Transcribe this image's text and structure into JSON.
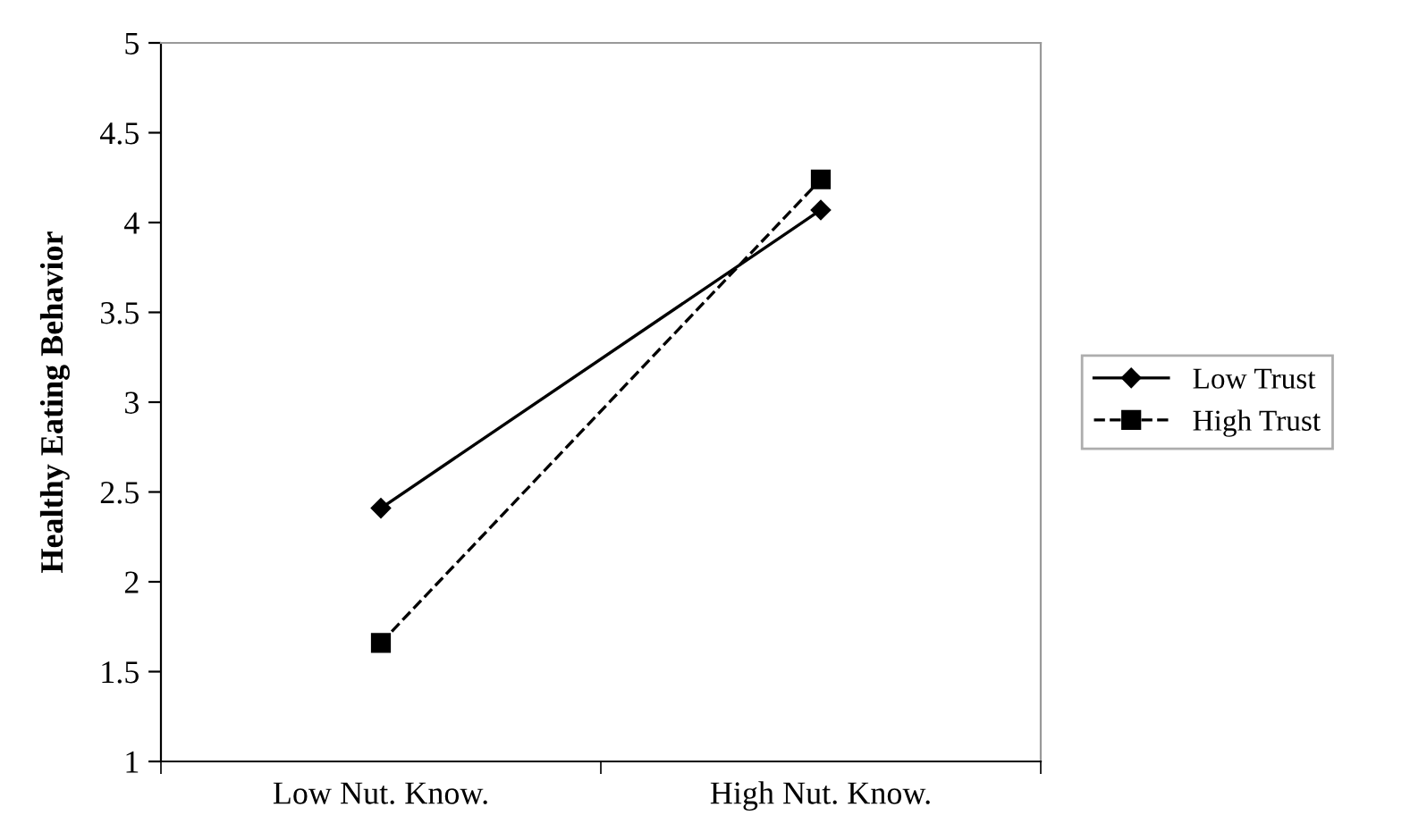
{
  "chart_data": {
    "type": "line",
    "ylabel": "Healthy Eating Behavior",
    "categories": [
      "Low Nut. Know.",
      "High Nut. Know."
    ],
    "series": [
      {
        "name": "Low Trust",
        "color": "#000000",
        "values": [
          2.41,
          4.07
        ],
        "marker": "diamond",
        "line_style": "solid"
      },
      {
        "name": "High Trust",
        "color": "#000000",
        "values": [
          1.66,
          4.24
        ],
        "marker": "square",
        "line_style": "dashed"
      }
    ],
    "ylim": [
      1,
      5
    ],
    "yticks": [
      1,
      1.5,
      2,
      2.5,
      3,
      3.5,
      4,
      4.5,
      5
    ],
    "grid": false,
    "legend": "right"
  }
}
